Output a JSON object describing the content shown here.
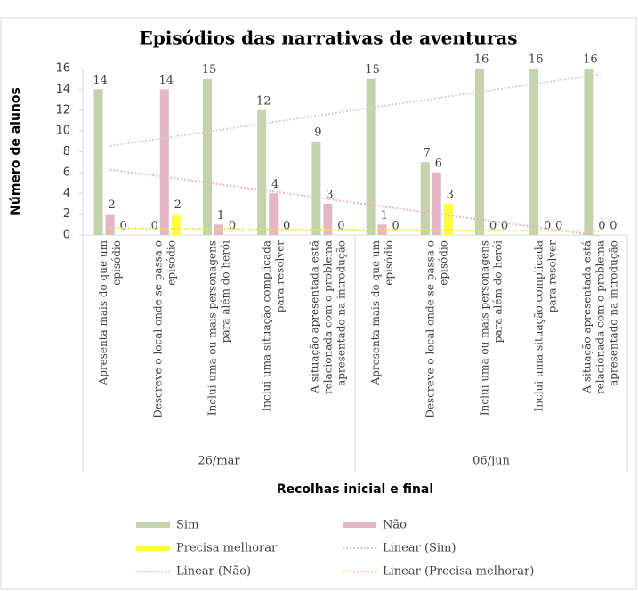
{
  "chart_data": {
    "type": "bar",
    "title": "Episódios das narrativas de aventuras",
    "y_label": "Número de alunos",
    "x_label": "Recolhas inicial e final",
    "categories": [
      "Apresenta mais do que um\nepisódio",
      "Descreve o local onde se passa o\nepisódio",
      "Inclui uma ou mais personagens\npara além do herói",
      "Inclui uma situação complicada\npara resolver",
      "A situação apresentada está\nrelacionada com o problema\napresentado na introdução",
      "Apresenta mais do que um\nepisódio",
      "Descreve o local onde se passa o\nepisódio",
      "Inclui uma ou mais personagens\npara além do herói",
      "Inclui uma situação complicada\npara resolver",
      "A situação apresentada está\nrelacionada com o problema\napresentado na introdução"
    ],
    "group_labels": [
      "26/mar",
      "06/jun"
    ],
    "series": [
      {
        "name": "Sim",
        "color": "#c3d3ad",
        "values": [
          14,
          0,
          15,
          12,
          9,
          15,
          7,
          16,
          16,
          16
        ]
      },
      {
        "name": "Não",
        "color": "#e5b6c6",
        "values": [
          2,
          14,
          1,
          4,
          3,
          1,
          6,
          0,
          0,
          0
        ]
      },
      {
        "name": "Precisa melhorar",
        "color": "#ffff3c",
        "values": [
          0,
          2,
          0,
          0,
          0,
          0,
          3,
          0,
          0,
          0
        ]
      }
    ],
    "trendlines": [
      {
        "name": "Linear (Sim)",
        "series": 0,
        "color": "#d0d0d0"
      },
      {
        "name": "Linear (Não)",
        "series": 1,
        "color": "#e5b6c6"
      },
      {
        "name": "Linear (Precisa melhorar)",
        "series": 2,
        "color": "#f0e040"
      }
    ],
    "ylim": [
      0,
      16
    ],
    "yticks": [
      0,
      2,
      4,
      6,
      8,
      10,
      12,
      14,
      16
    ],
    "grid": false
  }
}
